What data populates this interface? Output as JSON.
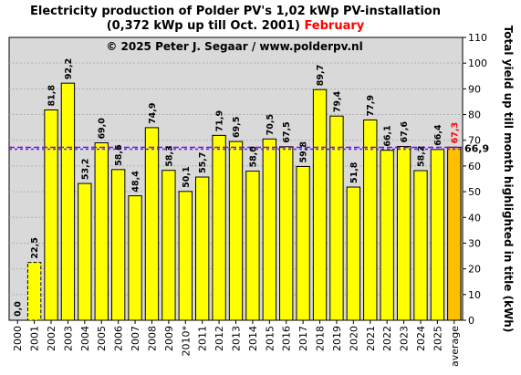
{
  "header": {
    "title_line1": "Electricity production  of Polder PV's 1,02 kWp PV-installation",
    "title_line2": "(0,372 kWp up till Oct. 2001)",
    "month": "February",
    "copyright": "© 2025 Peter J. Segaar / www.polderpv.nl"
  },
  "colors": {
    "plot_bg": "#d9d9d9",
    "bar_fill": "#ffff00",
    "average_fill": "#ffc000",
    "avg_line_purple": "#9900cc",
    "avg_line_blue": "#3333ff",
    "month_red": "#ff0000",
    "avg_label_magenta": "#cc00cc"
  },
  "chart_data": {
    "type": "bar",
    "categories": [
      "2000",
      "2001",
      "2002",
      "2003",
      "2004",
      "2005",
      "2006",
      "2007",
      "2008",
      "2009",
      "2010*",
      "2011",
      "2012",
      "2013",
      "2014",
      "2015",
      "2016",
      "2017",
      "2018",
      "2019",
      "2020",
      "2021",
      "2022",
      "2023",
      "2024",
      "2025",
      "average"
    ],
    "values": [
      0.0,
      22.5,
      81.8,
      92.2,
      53.2,
      69.0,
      58.6,
      48.4,
      74.9,
      58.3,
      50.1,
      55.7,
      71.9,
      69.5,
      58.0,
      70.5,
      67.5,
      59.8,
      89.7,
      79.4,
      51.8,
      77.9,
      66.1,
      67.6,
      58.2,
      66.4,
      67.3
    ],
    "value_labels": [
      "0,0",
      "22,5",
      "81,8",
      "92,2",
      "53,2",
      "69,0",
      "58,6",
      "48,4",
      "74,9",
      "58,3",
      "50,1",
      "55,7",
      "71,9",
      "69,5",
      "58,0",
      "70,5",
      "67,5",
      "59,8",
      "89,7",
      "79,4",
      "51,8",
      "77,9",
      "66,1",
      "67,6",
      "58,2",
      "66,4",
      "67,3"
    ],
    "dashed_bars": [
      "2001"
    ],
    "highlight_bar": "average",
    "reference_line": {
      "value": 66.9,
      "label": "66,9"
    },
    "ylabel": "Total yield up till month highlighted in title (kWh)",
    "ylim": [
      0,
      110
    ],
    "yticks": [
      0,
      10,
      20,
      30,
      40,
      50,
      60,
      70,
      80,
      90,
      100,
      110
    ],
    "y_axis_side": "right",
    "grid": true
  }
}
